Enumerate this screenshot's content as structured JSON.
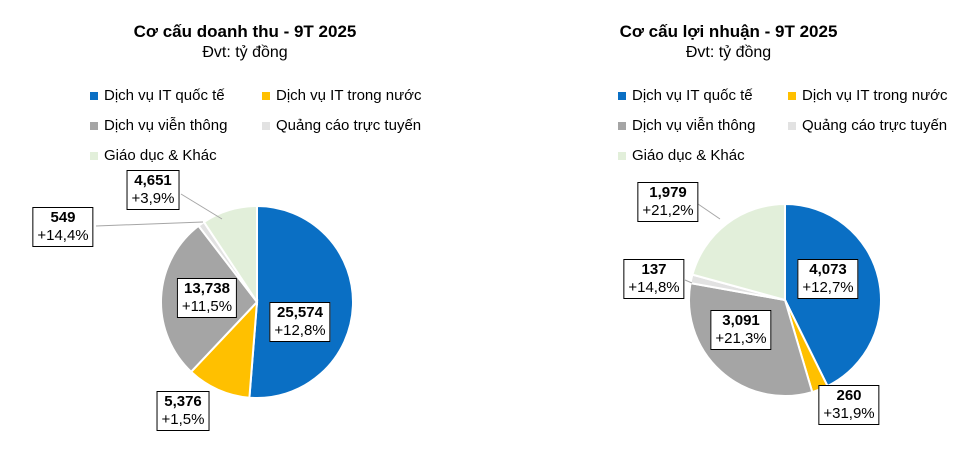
{
  "chart_data": [
    {
      "type": "pie",
      "title": "Cơ cấu doanh thu - 9T 2025",
      "subtitle": "Đvt: tỷ đồng",
      "legend_position": "top",
      "categories": [
        "Dịch vụ IT quốc tế",
        "Dịch vụ IT trong nước",
        "Dịch vụ viễn thông",
        "Quảng cáo trực tuyến",
        "Giáo dục & Khác"
      ],
      "values": [
        25574,
        5376,
        13738,
        549,
        4651
      ],
      "value_labels": [
        "25,574",
        "5,376",
        "13,738",
        "549",
        "4,651"
      ],
      "growth_labels": [
        "+12,8%",
        "+1,5%",
        "+11,5%",
        "+14,4%",
        "+3,9%"
      ],
      "colors": [
        "#0a6fc4",
        "#ffc000",
        "#a5a5a5",
        "#e2e2e2",
        "#e2efda"
      ]
    },
    {
      "type": "pie",
      "title": "Cơ cấu lợi nhuận - 9T 2025",
      "subtitle": "Đvt: tỷ đồng",
      "legend_position": "top",
      "categories": [
        "Dịch vụ IT quốc tế",
        "Dịch vụ IT trong nước",
        "Dịch vụ viễn thông",
        "Quảng cáo trực tuyến",
        "Giáo dục & Khác"
      ],
      "values": [
        4073,
        260,
        3091,
        137,
        1979
      ],
      "value_labels": [
        "4,073",
        "260",
        "3,091",
        "137",
        "1,979"
      ],
      "growth_labels": [
        "+12,7%",
        "+31,9%",
        "+21,3%",
        "+14,8%",
        "+21,2%"
      ],
      "colors": [
        "#0a6fc4",
        "#ffc000",
        "#a5a5a5",
        "#e2e2e2",
        "#e2efda"
      ]
    }
  ]
}
